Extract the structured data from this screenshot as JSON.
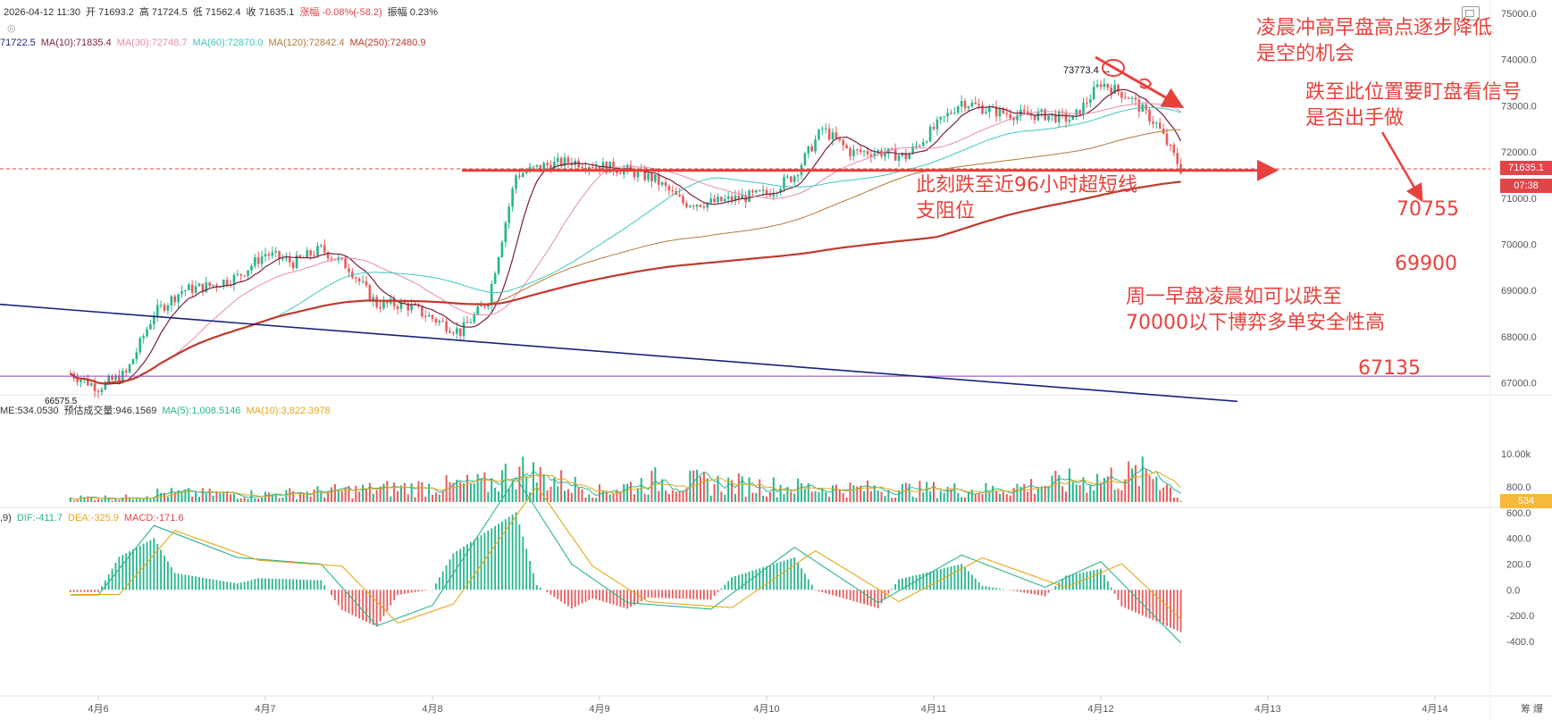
{
  "header": {
    "line1": [
      {
        "label": "2026-04-12 11:30"
      },
      {
        "label": "开 71693.2"
      },
      {
        "label": "高 71724.5"
      },
      {
        "label": "低 71562.4"
      },
      {
        "label": "收 71635.1"
      },
      {
        "label": "涨幅 -0.08%(-58.2)",
        "color": "red"
      },
      {
        "label": "振幅 0.23%"
      }
    ],
    "ma_line": [
      {
        "label": "71722.5",
        "color": "#1e2a7a"
      },
      {
        "label": "MA(10):71835.4",
        "color": "#7a1f3d"
      },
      {
        "label": "MA(30):72748.7",
        "color": "#e88ab0"
      },
      {
        "label": "MA(60):72870.0",
        "color": "#3ec7c0"
      },
      {
        "label": "MA(120):72842.4",
        "color": "#b07a3a"
      },
      {
        "label": "MA(250):72480.9",
        "color": "#c0392b"
      }
    ],
    "vol_line": [
      {
        "label": "ME:534.0530",
        "color": "#333"
      },
      {
        "label": "预估成交量:946.1569",
        "color": "#333"
      },
      {
        "label": "MA(5):1,008.5146",
        "color": "#2bb58f"
      },
      {
        "label": "MA(10):3,822.3978",
        "color": "#e6a817"
      }
    ],
    "macd_line": [
      {
        "label": ",9)",
        "color": "#333"
      },
      {
        "label": "DIF:-411.7",
        "color": "#2bb58f"
      },
      {
        "label": "DEA:-325.9",
        "color": "#e6a817"
      },
      {
        "label": "MACD:-171.6",
        "color": "#e0454a"
      }
    ]
  },
  "annotations": {
    "top_note": [
      "凌晨冲高早盘高点逐步降低",
      "是空的机会"
    ],
    "right_note": [
      "跌至此位置要盯盘看信号",
      "是否出手做"
    ],
    "support_note": [
      "此刻跌至近96小时超短线",
      "支阻位"
    ],
    "monday_note": [
      "周一早盘凌晨如可以跌至",
      "70000以下博弈多单安全性高"
    ],
    "levels": [
      "70755",
      "69900",
      "67135"
    ],
    "high_label": "73773.4",
    "low_label": "66575.5"
  },
  "price_tags": {
    "last_price": "71635.1",
    "countdown": "07:38",
    "volume_tag": "534"
  },
  "colors": {
    "up": "#26b58f",
    "down": "#e85b5b",
    "annotation": "#e8413b",
    "trendline": "#1a237e",
    "support_line": "#8e44ad"
  },
  "chart_data": {
    "type": "candlestick",
    "symbol_interval": "30m",
    "x_ticks": [
      "4月6",
      "4月7",
      "4月8",
      "4月9",
      "4月10",
      "4月11",
      "4月12",
      "4月13",
      "4月14"
    ],
    "price_axis": {
      "ticks": [
        "75000.0",
        "74000.0",
        "73000.0",
        "72000.0",
        "71000.0",
        "70000.0",
        "69000.0",
        "68000.0",
        "67000.0"
      ],
      "ylim": [
        66600,
        75000
      ]
    },
    "volume_axis": {
      "ticks": [
        "10.00k"
      ]
    },
    "macd_axis": {
      "ticks": [
        "800.0",
        "600.0",
        "400.0",
        "200.0",
        "0.0",
        "-200.0",
        "-400.0"
      ],
      "ylim": [
        -430,
        900
      ]
    },
    "close_path": [
      [
        "2026-04-05 20:00",
        67200
      ],
      [
        "2026-04-06 00:00",
        66900
      ],
      [
        "2026-04-06 04:00",
        67200
      ],
      [
        "2026-04-06 08:00",
        68500
      ],
      [
        "2026-04-06 12:00",
        69000
      ],
      [
        "2026-04-06 16:00",
        69100
      ],
      [
        "2026-04-06 20:00",
        69300
      ],
      [
        "2026-04-07 00:00",
        69800
      ],
      [
        "2026-04-07 04:00",
        69600
      ],
      [
        "2026-04-07 08:00",
        69900
      ],
      [
        "2026-04-07 12:00",
        69500
      ],
      [
        "2026-04-07 16:00",
        68700
      ],
      [
        "2026-04-07 20:00",
        68700
      ],
      [
        "2026-04-08 00:00",
        68400
      ],
      [
        "2026-04-08 04:00",
        68100
      ],
      [
        "2026-04-08 08:00",
        68800
      ],
      [
        "2026-04-08 12:00",
        71500
      ],
      [
        "2026-04-08 16:00",
        71700
      ],
      [
        "2026-04-08 20:00",
        71800
      ],
      [
        "2026-04-09 00:00",
        71700
      ],
      [
        "2026-04-09 04:00",
        71600
      ],
      [
        "2026-04-09 08:00",
        71400
      ],
      [
        "2026-04-09 12:00",
        70900
      ],
      [
        "2026-04-09 16:00",
        70900
      ],
      [
        "2026-04-09 20:00",
        71000
      ],
      [
        "2026-04-10 00:00",
        71100
      ],
      [
        "2026-04-10 04:00",
        71500
      ],
      [
        "2026-04-10 08:00",
        72500
      ],
      [
        "2026-04-10 12:00",
        72000
      ],
      [
        "2026-04-10 16:00",
        72000
      ],
      [
        "2026-04-10 20:00",
        71900
      ],
      [
        "2026-04-11 00:00",
        72500
      ],
      [
        "2026-04-11 04:00",
        73100
      ],
      [
        "2026-04-11 08:00",
        72900
      ],
      [
        "2026-04-11 12:00",
        72800
      ],
      [
        "2026-04-11 16:00",
        72800
      ],
      [
        "2026-04-11 20:00",
        72700
      ],
      [
        "2026-04-12 00:00",
        73500
      ],
      [
        "2026-04-12 04:00",
        73200
      ],
      [
        "2026-04-12 08:00",
        72600
      ],
      [
        "2026-04-12 11:30",
        71635
      ]
    ],
    "volume_path": [
      [
        "2026-04-06 04:00",
        1500
      ],
      [
        "2026-04-06 08:00",
        3000
      ],
      [
        "2026-04-07 00:00",
        2500
      ],
      [
        "2026-04-08 08:00",
        6000
      ],
      [
        "2026-04-08 12:00",
        10500
      ],
      [
        "2026-04-09 00:00",
        3500
      ],
      [
        "2026-04-09 08:00",
        7000
      ],
      [
        "2026-04-10 08:00",
        4500
      ],
      [
        "2026-04-11 08:00",
        4000
      ],
      [
        "2026-04-12 08:00",
        9500
      ],
      [
        "2026-04-12 11:30",
        534
      ]
    ],
    "macd_path": [
      [
        "2026-04-06 00:00",
        -40
      ],
      [
        "2026-04-06 08:00",
        500
      ],
      [
        "2026-04-06 20:00",
        250
      ],
      [
        "2026-04-07 08:00",
        200
      ],
      [
        "2026-04-07 16:00",
        -280
      ],
      [
        "2026-04-08 00:00",
        -120
      ],
      [
        "2026-04-08 12:00",
        870
      ],
      [
        "2026-04-08 20:00",
        200
      ],
      [
        "2026-04-09 04:00",
        -100
      ],
      [
        "2026-04-09 16:00",
        -150
      ],
      [
        "2026-04-10 04:00",
        330
      ],
      [
        "2026-04-10 16:00",
        -100
      ],
      [
        "2026-04-11 04:00",
        270
      ],
      [
        "2026-04-11 16:00",
        20
      ],
      [
        "2026-04-12 00:00",
        220
      ],
      [
        "2026-04-12 11:30",
        -411.7
      ]
    ]
  }
}
